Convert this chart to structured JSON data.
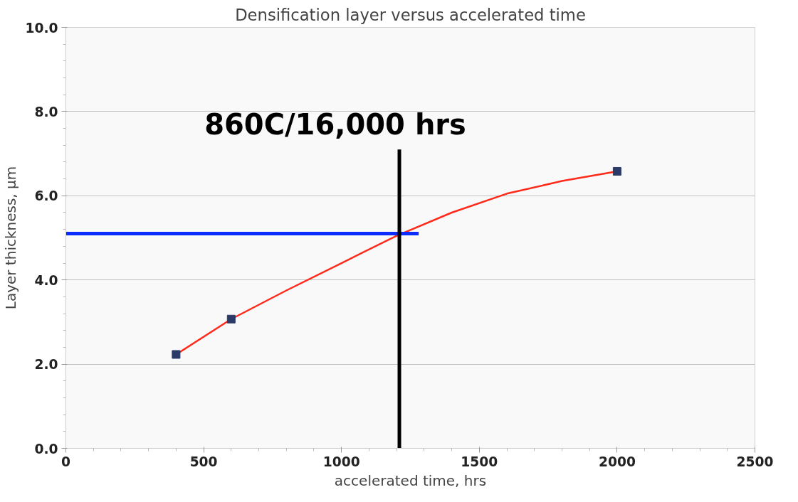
{
  "chart_data": {
    "type": "scatter",
    "title": "Densification layer versus accelerated time",
    "xlabel": "accelerated time, hrs",
    "ylabel": "Layer thickness, µm",
    "xlim": [
      0,
      2500
    ],
    "xticks": [
      0,
      500,
      1000,
      1500,
      2000,
      2500
    ],
    "ylim": [
      0,
      10
    ],
    "yticks": [
      {
        "value": 0,
        "label": "0.0"
      },
      {
        "value": 2,
        "label": "2.0"
      },
      {
        "value": 4,
        "label": "4.0"
      },
      {
        "value": 6,
        "label": "6.0"
      },
      {
        "value": 8,
        "label": "8.0"
      },
      {
        "value": 10,
        "label": "10.0"
      }
    ],
    "grid": "y",
    "series": [
      {
        "type": "line",
        "color": "#ff2a1a",
        "x": [
          400,
          600,
          800,
          1000,
          1200,
          1400,
          1600,
          1800,
          2000
        ],
        "values": [
          2.23,
          3.07,
          3.75,
          4.4,
          5.05,
          5.6,
          6.05,
          6.35,
          6.58
        ]
      },
      {
        "marker": "square",
        "color": "#2b3a67",
        "x": [
          400,
          600,
          2000
        ],
        "values": [
          2.23,
          3.07,
          6.58
        ]
      },
      {
        "type": "line",
        "color": "#0a2cff",
        "x": [
          0,
          1280
        ],
        "values": [
          5.1,
          5.1
        ]
      },
      {
        "type": "line",
        "color": "#000000",
        "x": [
          1210,
          1210
        ],
        "values": [
          0,
          7.1
        ]
      }
    ],
    "annotations": [
      {
        "text": "860C/16,000 hrs",
        "x": 1210,
        "y": 7.1
      }
    ]
  }
}
